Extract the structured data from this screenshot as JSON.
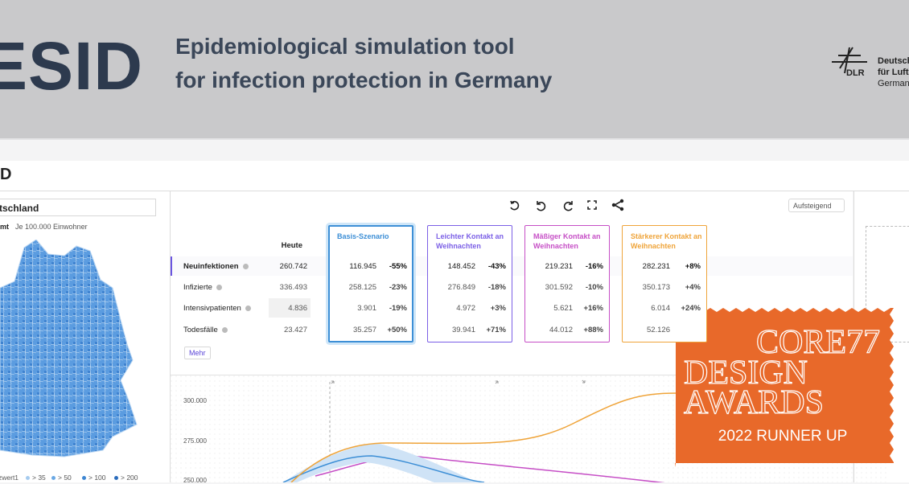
{
  "header": {
    "logo": "ESID",
    "tagline": [
      "Epidemiological simulation tool",
      "for infection protection in Germany"
    ],
    "partner_mark": "DLR",
    "partner_text": [
      "Deutsch",
      "für Luft",
      "German"
    ]
  },
  "app": {
    "title": "D",
    "location": "tschland",
    "map_tabs": [
      "mt",
      "Je 100.000 Einwohner"
    ],
    "map_legend": [
      "zwert1",
      "> 35",
      "> 50",
      "> 100",
      "> 200"
    ],
    "sort": "Aufsteigend",
    "more_button": "Mehr"
  },
  "table": {
    "today_header": "Heute",
    "rows": [
      "Neuinfektionen",
      "Infizierte",
      "Intensivpatienten",
      "Todesfälle"
    ],
    "today": [
      "260.742",
      "336.493",
      "4.836",
      "23.427"
    ],
    "scenarios": [
      {
        "name": "Basis-Szenario",
        "color": "#3d8fd6",
        "values": [
          "116.945",
          "258.125",
          "3.901",
          "35.257"
        ],
        "changes": [
          "-55%",
          "-23%",
          "-19%",
          "+50%"
        ]
      },
      {
        "name": "Leichter Kontakt an Weihnachten",
        "color": "#7b5fe6",
        "values": [
          "148.452",
          "276.849",
          "4.972",
          "39.941"
        ],
        "changes": [
          "-43%",
          "-18%",
          "+3%",
          "+71%"
        ]
      },
      {
        "name": "Mäßiger Kontakt an Weihnachten",
        "color": "#c64fc6",
        "values": [
          "219.231",
          "301.592",
          "5.621",
          "44.012"
        ],
        "changes": [
          "-16%",
          "-10%",
          "+16%",
          "+88%"
        ]
      },
      {
        "name": "Stärkerer Kontakt an Weihnachten",
        "color": "#efa43a",
        "values": [
          "282.231",
          "350.173",
          "6.014",
          "52.126"
        ],
        "changes": [
          "+8%",
          "+4%",
          "+24%",
          null
        ]
      }
    ]
  },
  "chart": {
    "yticks": [
      "300.000",
      "275.000",
      "250.000"
    ]
  },
  "badge": {
    "lines": [
      "CORE77",
      "DESIGN",
      "AWARDS"
    ],
    "award": "2022 RUNNER UP"
  }
}
